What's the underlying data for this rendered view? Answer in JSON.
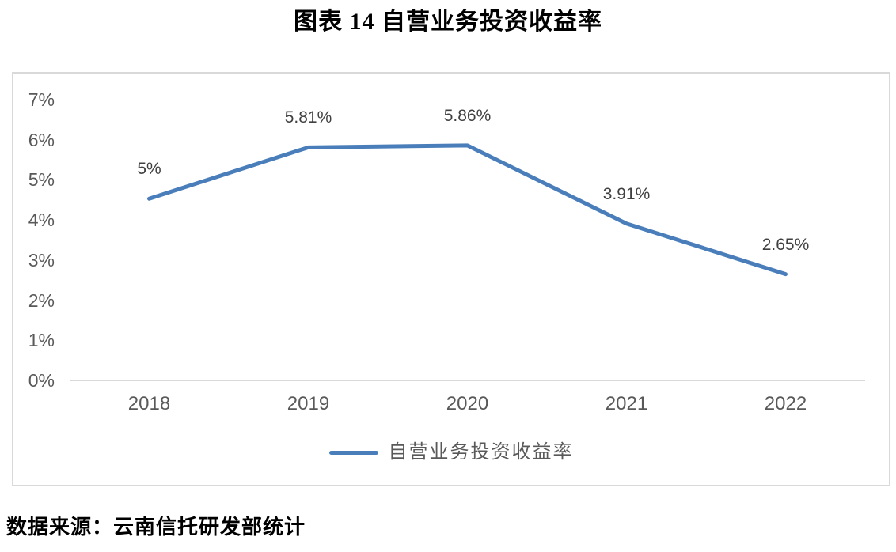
{
  "page": {
    "title": "图表 14 自营业务投资收益率",
    "source": "数据来源：云南信托研发部统计"
  },
  "chart_data": {
    "type": "line",
    "title": "图表 14 自营业务投资收益率",
    "categories": [
      "2018",
      "2019",
      "2020",
      "2021",
      "2022"
    ],
    "series": [
      {
        "name": "自营业务投资收益率",
        "values": [
          4.53,
          5.81,
          5.86,
          3.91,
          2.65
        ],
        "labels": [
          "5%",
          "5.81%",
          "5.86%",
          "3.91%",
          "2.65%"
        ],
        "color": "#4a7ebb"
      }
    ],
    "ylabel": "",
    "xlabel": "",
    "ylim": [
      0,
      7
    ],
    "ytick_step": 1,
    "ytick_suffix": "%",
    "grid": false,
    "legend_position": "bottom"
  },
  "colors": {
    "line": "#4a7ebb",
    "frame_border": "#d9d9d9",
    "axis_line": "#d9d9d9",
    "axis_text": "#595959",
    "data_label_text": "#404040",
    "title_text": "#000000"
  }
}
